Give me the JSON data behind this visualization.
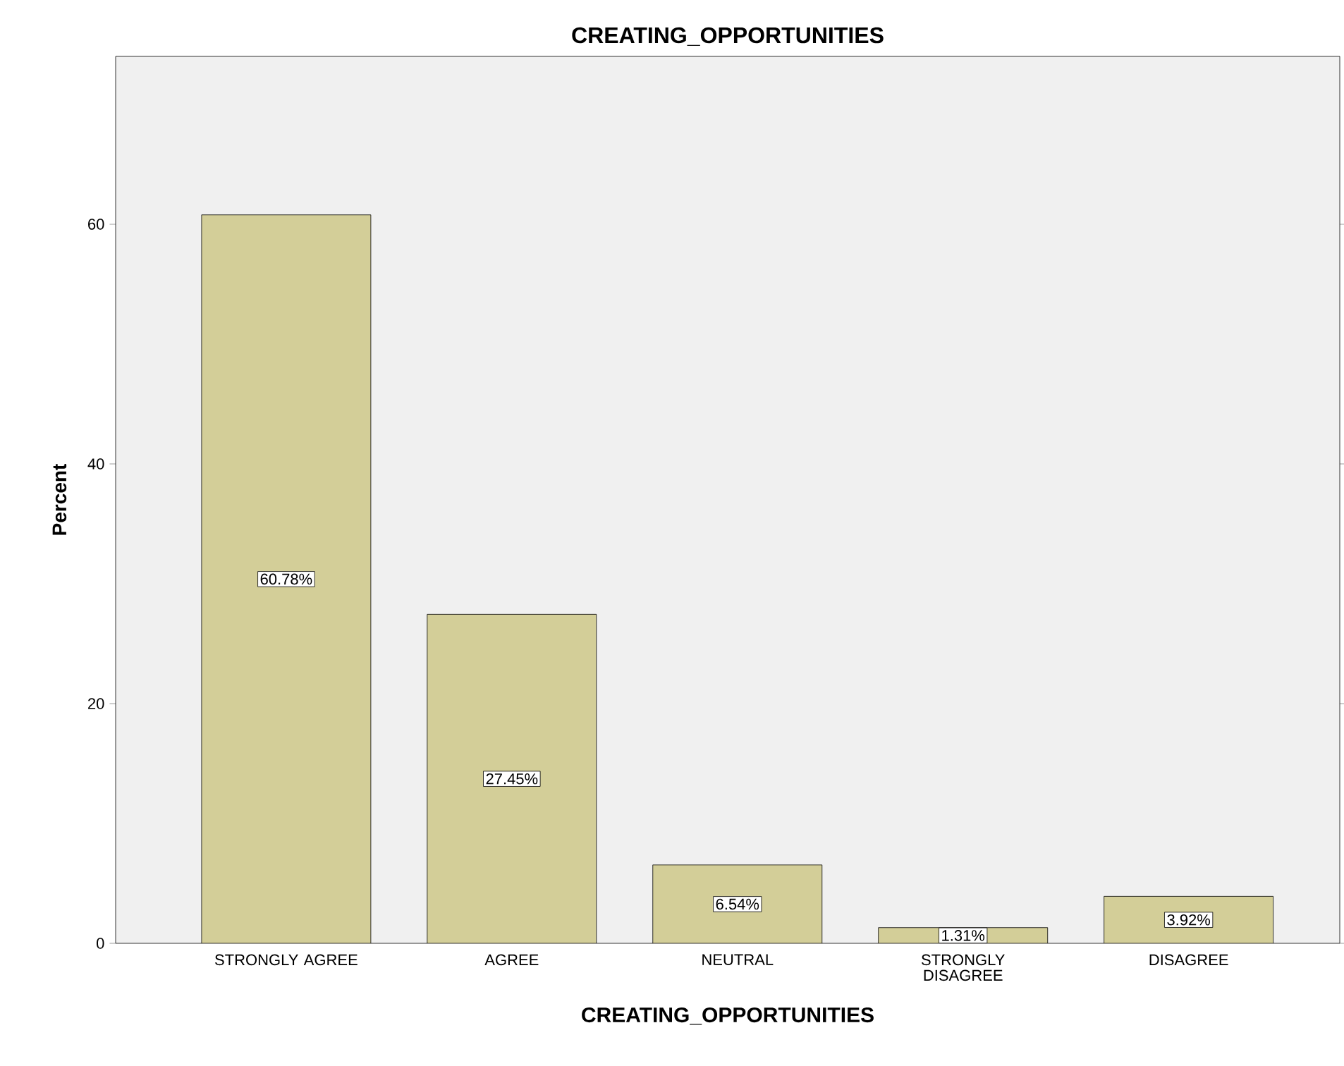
{
  "chart_data": {
    "type": "bar",
    "title": "CREATING_OPPORTUNITIES",
    "xlabel": "CREATING_OPPORTUNITIES",
    "ylabel": "Percent",
    "categories": [
      "STRONGLY AGREE",
      "AGREE",
      "NEUTRAL",
      "STRONGLY DISAGREE",
      "DISAGREE"
    ],
    "values": [
      60.78,
      27.45,
      6.54,
      1.31,
      3.92
    ],
    "value_labels": [
      "60.78%",
      "27.45%",
      "6.54%",
      "1.31%",
      "3.92%"
    ],
    "color": "#d3ce98",
    "ylim": [
      0,
      74
    ],
    "yticks": [
      0,
      20,
      40,
      60
    ]
  }
}
